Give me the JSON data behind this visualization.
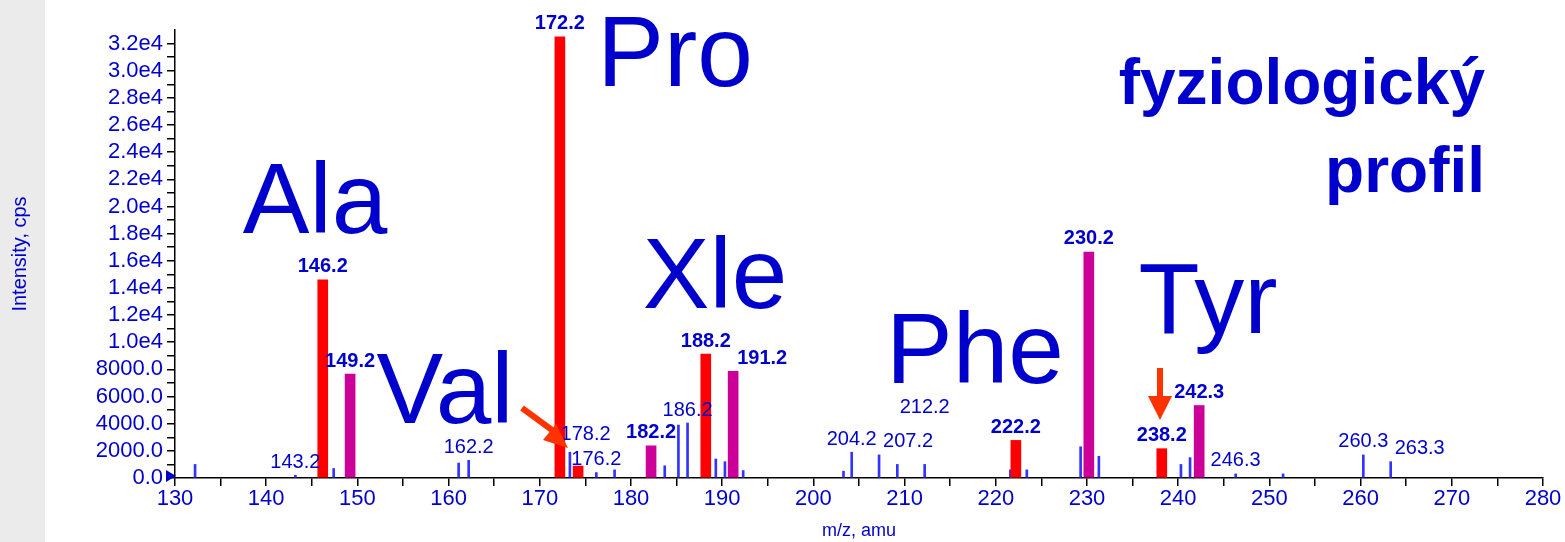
{
  "chart_data": {
    "type": "bar",
    "title": "fyziologický profil",
    "xlabel": "m/z, amu",
    "ylabel": "Intensity, cps",
    "xlim": [
      130,
      280
    ],
    "xticks": [
      130,
      {
        "value": 135,
        "label": null
      },
      140,
      {
        "value": 145,
        "label": null
      },
      150,
      {
        "value": 155,
        "label": null
      },
      160,
      {
        "value": 165,
        "label": null
      },
      170,
      {
        "value": 175,
        "label": null
      },
      180,
      {
        "value": 185,
        "label": null
      },
      190,
      {
        "value": 195,
        "label": null
      },
      200,
      {
        "value": 205,
        "label": null
      },
      210,
      {
        "value": 215,
        "label": null
      },
      220,
      {
        "value": 225,
        "label": null
      },
      230,
      {
        "value": 235,
        "label": null
      },
      240,
      {
        "value": 245,
        "label": null
      },
      250,
      {
        "value": 255,
        "label": null
      },
      260,
      {
        "value": 265,
        "label": null
      },
      270,
      {
        "value": 275,
        "label": null
      },
      280
    ],
    "ylim": [
      0,
      33000
    ],
    "yticks": [
      {
        "value": 0,
        "label": "0.0"
      },
      {
        "value": 1000,
        "label": null
      },
      {
        "value": 2000,
        "label": "2000.0"
      },
      {
        "value": 3000,
        "label": null
      },
      {
        "value": 4000,
        "label": "4000.0"
      },
      {
        "value": 5000,
        "label": null
      },
      {
        "value": 6000,
        "label": "6000.0"
      },
      {
        "value": 7000,
        "label": null
      },
      {
        "value": 8000,
        "label": "8000.0"
      },
      {
        "value": 9000,
        "label": null
      },
      {
        "value": 10000,
        "label": "1.0e4"
      },
      {
        "value": 11000,
        "label": null
      },
      {
        "value": 12000,
        "label": "1.2e4"
      },
      {
        "value": 13000,
        "label": null
      },
      {
        "value": 14000,
        "label": "1.4e4"
      },
      {
        "value": 15000,
        "label": null
      },
      {
        "value": 16000,
        "label": "1.6e4"
      },
      {
        "value": 17000,
        "label": null
      },
      {
        "value": 18000,
        "label": "1.8e4"
      },
      {
        "value": 19000,
        "label": null
      },
      {
        "value": 20000,
        "label": "2.0e4"
      },
      {
        "value": 21000,
        "label": null
      },
      {
        "value": 22000,
        "label": "2.2e4"
      },
      {
        "value": 23000,
        "label": null
      },
      {
        "value": 24000,
        "label": "2.4e4"
      },
      {
        "value": 25000,
        "label": null
      },
      {
        "value": 26000,
        "label": "2.6e4"
      },
      {
        "value": 27000,
        "label": null
      },
      {
        "value": 28000,
        "label": "2.8e4"
      },
      {
        "value": 29000,
        "label": null
      },
      {
        "value": 30000,
        "label": "3.0e4"
      },
      {
        "value": 31000,
        "label": null
      },
      {
        "value": 32000,
        "label": "3.2e4"
      }
    ],
    "annotations": [
      "Ala",
      "Pro",
      "Val",
      "Xle",
      "Phe",
      "Tyr",
      {
        "text": "146.2",
        "x": 146.2,
        "y": 14600
      },
      {
        "text": "172.2",
        "x": 172.2,
        "y": 32500
      },
      {
        "text": "188.2",
        "x": 188.2,
        "y": 9130
      },
      {
        "text": "222.2",
        "x": 222.2,
        "y": 2770
      },
      {
        "text": "238.2",
        "x": 238.2,
        "y": 2160
      },
      {
        "text": "149.2",
        "x": 149.2,
        "y": 7650
      },
      {
        "text": "182.2",
        "x": 182.2,
        "y": 2370
      },
      {
        "text": "191.2",
        "x": 191.2,
        "y": 7850
      },
      {
        "text": "230.2",
        "x": 230.2,
        "y": 16650
      },
      {
        "text": "242.3",
        "x": 242.3,
        "y": 5340
      },
      {
        "text": "143.2",
        "x": 143.2,
        "y": 200
      },
      {
        "text": "162.2",
        "x": 162.2,
        "y": 1300
      },
      {
        "text": "176.2",
        "x": 176.2,
        "y": 400
      },
      {
        "text": "178.2",
        "x": 178.2,
        "y": 600
      },
      {
        "text": "186.2",
        "x": 186.2,
        "y": 4050
      },
      {
        "text": "204.2",
        "x": 204.2,
        "y": 1900
      },
      {
        "text": "207.2",
        "x": 207.2,
        "y": 1700
      },
      {
        "text": "212.2",
        "x": 212.2,
        "y": 1000
      },
      {
        "text": "246.3",
        "x": 246.3,
        "y": 300
      },
      {
        "text": "260.3",
        "x": 260.3,
        "y": 1700
      },
      {
        "text": "263.3",
        "x": 263.3,
        "y": 1200
      }
    ],
    "series": [
      {
        "color": "#ff0000",
        "x": [
          146.2,
          172.2,
          174.2,
          188.2,
          222.2,
          238.2
        ],
        "values": [
          14600,
          32500,
          880,
          9130,
          2770,
          2160
        ]
      },
      {
        "color": "#cc0099",
        "x": [
          149.2,
          182.2,
          191.2,
          230.2,
          242.3
        ],
        "values": [
          7650,
          2370,
          7850,
          16650,
          5340
        ]
      },
      {
        "color": "#3333ff",
        "x": [
          132.2,
          143.2,
          147.4,
          161.1,
          162.2,
          173.3,
          176.2,
          178.2,
          183.7,
          185.2,
          186.2,
          189.3,
          190.3,
          192.3,
          203.3,
          204.2,
          207.2,
          209.2,
          212.2,
          221.6,
          223.4,
          229.3,
          231.3,
          240.3,
          241.3,
          246.3,
          251.5,
          260.3,
          263.3
        ],
        "values": [
          1000,
          200,
          700,
          1100,
          1300,
          1900,
          400,
          600,
          900,
          3900,
          4050,
          1400,
          1200,
          550,
          500,
          1900,
          1700,
          1000,
          1000,
          600,
          600,
          2300,
          1600,
          1000,
          1500,
          300,
          300,
          1700,
          1200
        ]
      }
    ]
  }
}
